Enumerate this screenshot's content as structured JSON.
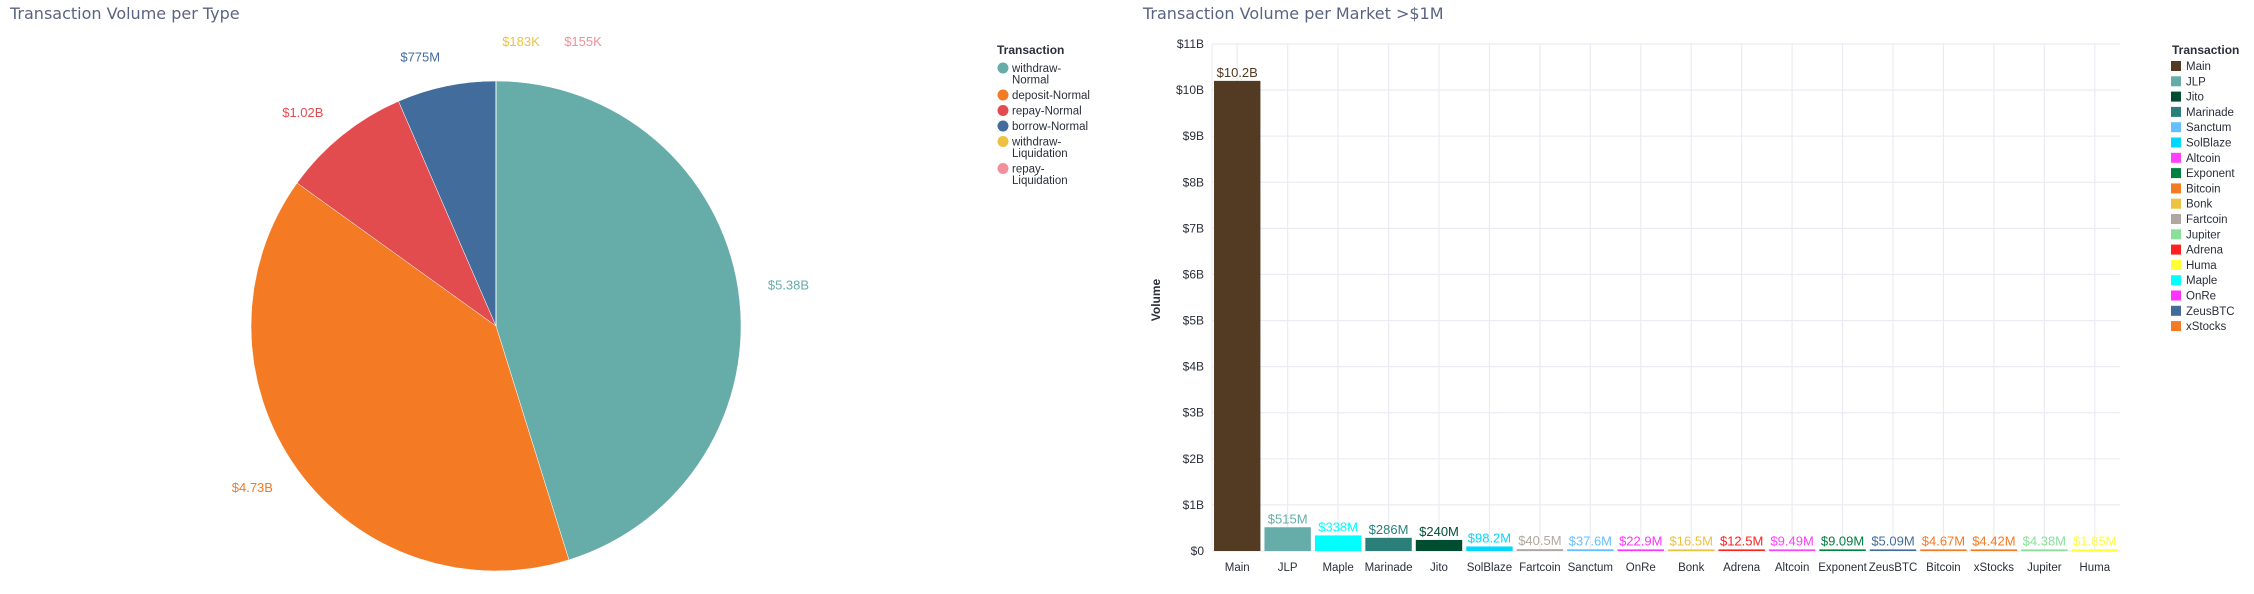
{
  "chart_data": [
    {
      "type": "pie",
      "title": "Transaction Volume per Type",
      "legend_title": "Transaction",
      "legend_position": "right",
      "slices": [
        {
          "name": "withdraw-Normal",
          "legend_lines": [
            "withdraw-",
            "Normal"
          ],
          "value": 5380000000,
          "label": "$5.38B",
          "color": "#66ada9"
        },
        {
          "name": "deposit-Normal",
          "legend_lines": [
            "deposit-Normal"
          ],
          "value": 4730000000,
          "label": "$4.73B",
          "color": "#f47a24"
        },
        {
          "name": "repay-Normal",
          "legend_lines": [
            "repay-Normal"
          ],
          "value": 1020000000,
          "label": "$1.02B",
          "color": "#e24c4f"
        },
        {
          "name": "borrow-Normal",
          "legend_lines": [
            "borrow-Normal"
          ],
          "value": 775000000,
          "label": "$775M",
          "color": "#426c9c"
        },
        {
          "name": "withdraw-Liquidation",
          "legend_lines": [
            "withdraw-",
            "Liquidation"
          ],
          "value": 183000,
          "label": "$183K",
          "color": "#edc240"
        },
        {
          "name": "repay-Liquidation",
          "legend_lines": [
            "repay-",
            "Liquidation"
          ],
          "value": 155000,
          "label": "$155K",
          "color": "#f48e9a"
        }
      ]
    },
    {
      "type": "bar",
      "title": "Transaction Volume per Market >$1M",
      "xlabel": "",
      "ylabel": "Volume",
      "ylim": [
        0,
        11000000000
      ],
      "yticks": [
        {
          "value": 0,
          "label": "$0"
        },
        {
          "value": 1000000000,
          "label": "$1B"
        },
        {
          "value": 2000000000,
          "label": "$2B"
        },
        {
          "value": 3000000000,
          "label": "$3B"
        },
        {
          "value": 4000000000,
          "label": "$4B"
        },
        {
          "value": 5000000000,
          "label": "$5B"
        },
        {
          "value": 6000000000,
          "label": "$6B"
        },
        {
          "value": 7000000000,
          "label": "$7B"
        },
        {
          "value": 8000000000,
          "label": "$8B"
        },
        {
          "value": 9000000000,
          "label": "$9B"
        },
        {
          "value": 10000000000,
          "label": "$10B"
        },
        {
          "value": 11000000000,
          "label": "$11B"
        }
      ],
      "grid": true,
      "legend_title": "Transaction",
      "legend_position": "right",
      "bars": [
        {
          "category": "Main",
          "value": 10200000000,
          "label": "$10.2B",
          "color": "#533a22"
        },
        {
          "category": "JLP",
          "value": 515000000,
          "label": "$515M",
          "color": "#66ada9"
        },
        {
          "category": "Maple",
          "value": 338000000,
          "label": "$338M",
          "color": "#00ffff"
        },
        {
          "category": "Marinade",
          "value": 286000000,
          "label": "$286M",
          "color": "#2a7f78"
        },
        {
          "category": "Jito",
          "value": 240000000,
          "label": "$240M",
          "color": "#004d32"
        },
        {
          "category": "SolBlaze",
          "value": 98200000,
          "label": "$98.2M",
          "color": "#00d9ff"
        },
        {
          "category": "Fartcoin",
          "value": 40500000,
          "label": "$40.5M",
          "color": "#b0a8a0"
        },
        {
          "category": "Sanctum",
          "value": 37600000,
          "label": "$37.6M",
          "color": "#66bfff"
        },
        {
          "category": "OnRe",
          "value": 22900000,
          "label": "$22.9M",
          "color": "#ff33ff"
        },
        {
          "category": "Bonk",
          "value": 16500000,
          "label": "$16.5M",
          "color": "#edc240"
        },
        {
          "category": "Adrena",
          "value": 12500000,
          "label": "$12.5M",
          "color": "#ff2020"
        },
        {
          "category": "Altcoin",
          "value": 9490000,
          "label": "$9.49M",
          "color": "#ff40ff"
        },
        {
          "category": "Exponent",
          "value": 9090000,
          "label": "$9.09M",
          "color": "#008040"
        },
        {
          "category": "ZeusBTC",
          "value": 5090000,
          "label": "$5.09M",
          "color": "#426c9c"
        },
        {
          "category": "Bitcoin",
          "value": 4670000,
          "label": "$4.67M",
          "color": "#f47a24"
        },
        {
          "category": "xStocks",
          "value": 4420000,
          "label": "$4.42M",
          "color": "#f47a24"
        },
        {
          "category": "Jupiter",
          "value": 4380000,
          "label": "$4.38M",
          "color": "#88e09a"
        },
        {
          "category": "Huma",
          "value": 1850000,
          "label": "$1.85M",
          "color": "#ffff33"
        }
      ],
      "legend_order": [
        {
          "name": "Main",
          "color": "#533a22"
        },
        {
          "name": "JLP",
          "color": "#66ada9"
        },
        {
          "name": "Jito",
          "color": "#004d32"
        },
        {
          "name": "Marinade",
          "color": "#2a7f78"
        },
        {
          "name": "Sanctum",
          "color": "#66bfff"
        },
        {
          "name": "SolBlaze",
          "color": "#00d9ff"
        },
        {
          "name": "Altcoin",
          "color": "#ff40ff"
        },
        {
          "name": "Exponent",
          "color": "#008040"
        },
        {
          "name": "Bitcoin",
          "color": "#f47a24"
        },
        {
          "name": "Bonk",
          "color": "#edc240"
        },
        {
          "name": "Fartcoin",
          "color": "#b0a8a0"
        },
        {
          "name": "Jupiter",
          "color": "#88e09a"
        },
        {
          "name": "Adrena",
          "color": "#ff2020"
        },
        {
          "name": "Huma",
          "color": "#ffff33"
        },
        {
          "name": "Maple",
          "color": "#00ffff"
        },
        {
          "name": "OnRe",
          "color": "#ff33ff"
        },
        {
          "name": "ZeusBTC",
          "color": "#426c9c"
        },
        {
          "name": "xStocks",
          "color": "#f47a24"
        }
      ]
    }
  ]
}
